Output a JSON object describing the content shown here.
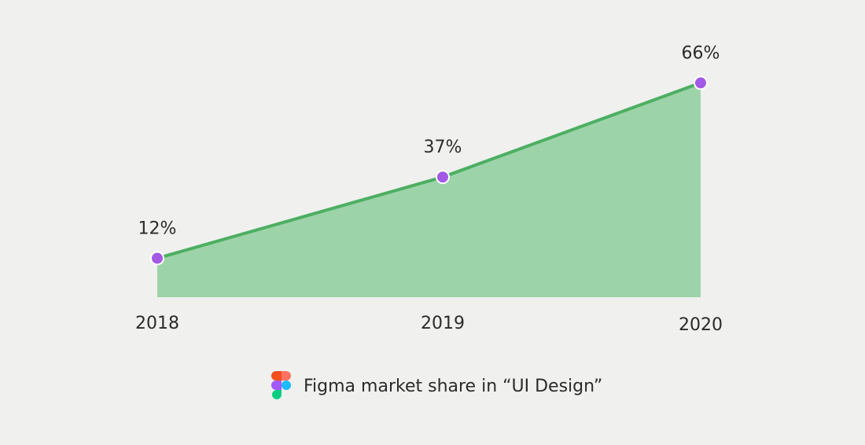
{
  "chart_data": {
    "type": "area",
    "categories": [
      "2018",
      "2019",
      "2020"
    ],
    "series": [
      {
        "name": "Figma market share in “UI Design”",
        "color": "#4caf61",
        "fill": "#9dd3a8",
        "marker_color": "#a259e6",
        "values": [
          12,
          37,
          66
        ],
        "value_labels": [
          "12%",
          "37%",
          "66%"
        ]
      }
    ]
  }
}
